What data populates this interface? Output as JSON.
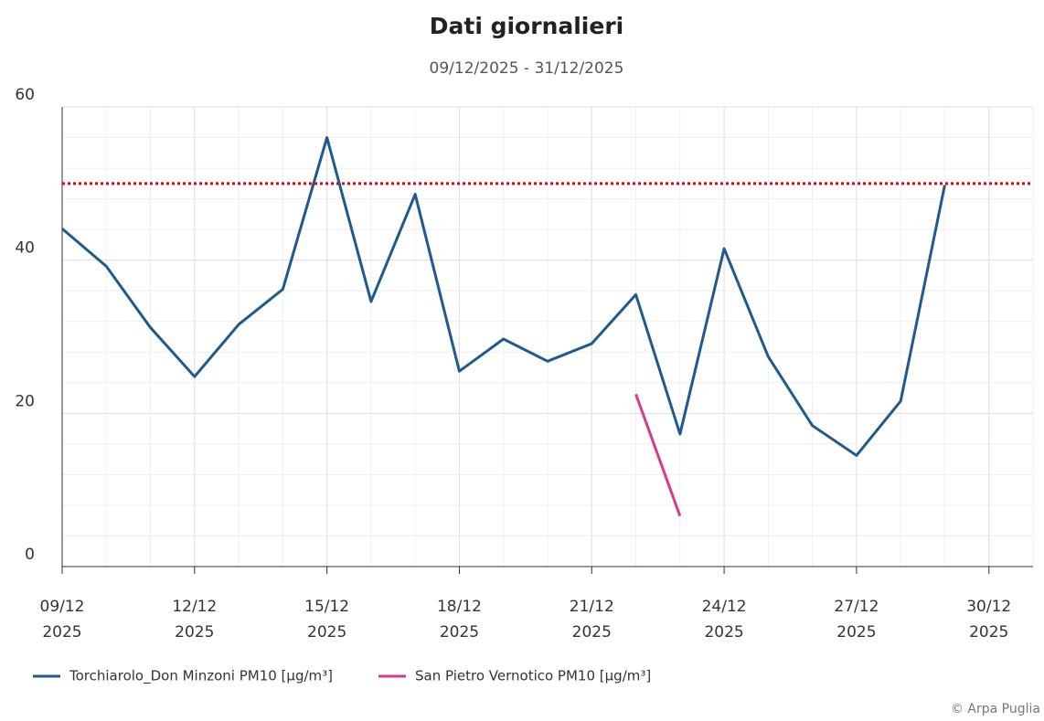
{
  "chart_data": {
    "type": "line",
    "title": "Dati giornalieri",
    "subtitle": "09/12/2025 - 31/12/2025",
    "x": [
      "2025-12-09",
      "2025-12-10",
      "2025-12-11",
      "2025-12-12",
      "2025-12-13",
      "2025-12-14",
      "2025-12-15",
      "2025-12-16",
      "2025-12-17",
      "2025-12-18",
      "2025-12-19",
      "2025-12-20",
      "2025-12-21",
      "2025-12-22",
      "2025-12-23",
      "2025-12-24",
      "2025-12-25",
      "2025-12-26",
      "2025-12-27",
      "2025-12-28",
      "2025-12-29"
    ],
    "series": [
      {
        "name": "Torchiarolo_Don Minzoni PM10 [µg/m³]",
        "color": "#1f5a8e",
        "values": [
          44.1,
          39.2,
          31.2,
          24.8,
          31.6,
          36.2,
          56.0,
          34.6,
          48.6,
          25.5,
          29.7,
          26.8,
          29.1,
          35.5,
          17.3,
          41.5,
          27.4,
          18.4,
          14.5,
          21.6,
          49.8
        ]
      },
      {
        "name": "San Pietro Vernotico PM10 [µg/m³]",
        "color": "#d63a92",
        "values": [
          null,
          null,
          null,
          null,
          null,
          null,
          null,
          null,
          null,
          null,
          null,
          null,
          null,
          22.5,
          6.6,
          null,
          null,
          null,
          null,
          null,
          null
        ]
      }
    ],
    "threshold": {
      "value": 50,
      "color": "#e8000b"
    },
    "xlim": [
      "2025-12-09",
      "2025-12-31"
    ],
    "xticks": [
      {
        "value": "2025-12-09",
        "label": [
          "09/12",
          "2025"
        ]
      },
      {
        "value": "2025-12-12",
        "label": [
          "12/12",
          "2025"
        ]
      },
      {
        "value": "2025-12-15",
        "label": [
          "15/12",
          "2025"
        ]
      },
      {
        "value": "2025-12-18",
        "label": [
          "18/12",
          "2025"
        ]
      },
      {
        "value": "2025-12-21",
        "label": [
          "21/12",
          "2025"
        ]
      },
      {
        "value": "2025-12-24",
        "label": [
          "24/12",
          "2025"
        ]
      },
      {
        "value": "2025-12-27",
        "label": [
          "27/12",
          "2025"
        ]
      },
      {
        "value": "2025-12-30",
        "label": [
          "30/12",
          "2025"
        ]
      }
    ],
    "ylim": [
      0,
      60
    ],
    "yticks": [
      0,
      20,
      40,
      60
    ],
    "grid": true,
    "credit": "© Arpa Puglia"
  }
}
